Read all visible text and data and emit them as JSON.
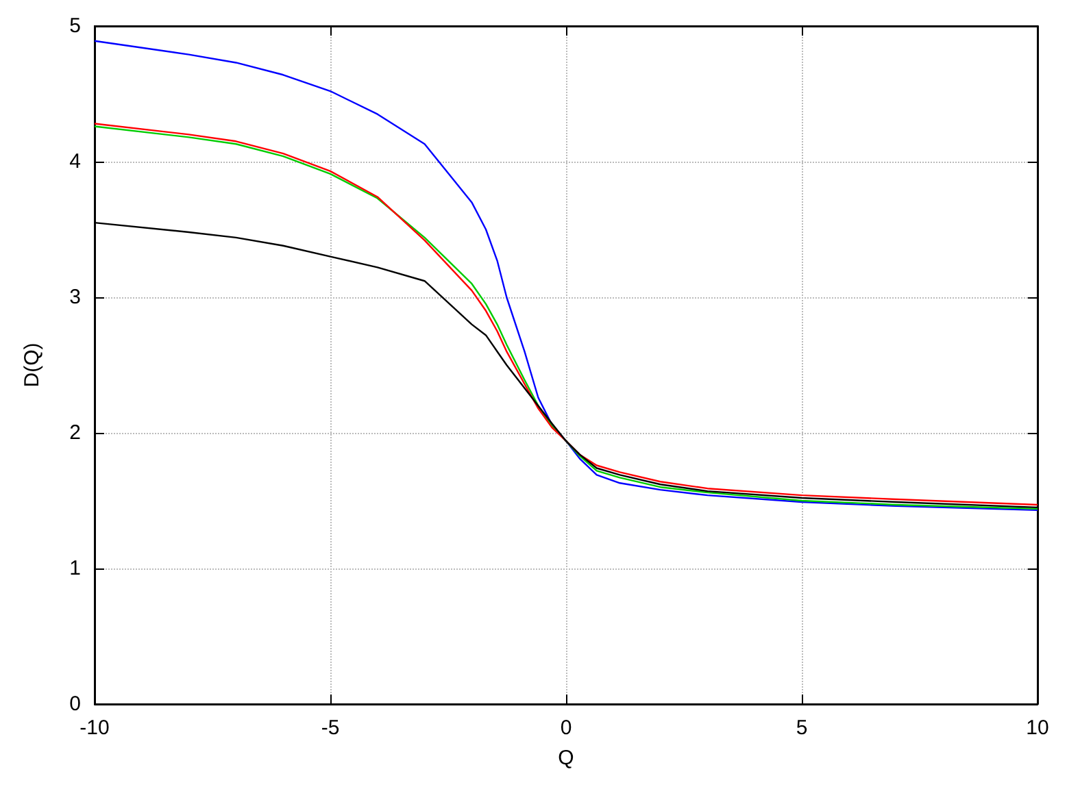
{
  "chart_data": {
    "type": "line",
    "xlabel": "Q",
    "ylabel": "D(Q)",
    "xlim": [
      -10,
      10
    ],
    "ylim": [
      0,
      5
    ],
    "xticks": [
      -10,
      -5,
      0,
      5,
      10
    ],
    "yticks": [
      0,
      1,
      2,
      3,
      4,
      5
    ],
    "grid": true,
    "marker": "none",
    "line_style": "solid",
    "x": [
      -10,
      -8,
      -7,
      -6,
      -5,
      -4,
      -3,
      -2,
      -1.7,
      -1.46,
      -1.26,
      -0.88,
      -0.59,
      -0.3,
      0,
      0.29,
      0.65,
      1.14,
      2,
      3,
      5,
      7,
      10
    ],
    "series": [
      {
        "color": "#0000ff",
        "values": [
          4.89,
          4.79,
          4.73,
          4.64,
          4.52,
          4.35,
          4.13,
          3.7,
          3.5,
          3.27,
          3.0,
          2.6,
          2.26,
          2.06,
          1.94,
          1.81,
          1.69,
          1.63,
          1.58,
          1.54,
          1.49,
          1.46,
          1.43
        ]
      },
      {
        "color": "#00cc00",
        "values": [
          4.26,
          4.18,
          4.13,
          4.04,
          3.91,
          3.73,
          3.44,
          3.1,
          2.95,
          2.8,
          2.65,
          2.39,
          2.2,
          2.05,
          1.94,
          1.83,
          1.72,
          1.67,
          1.6,
          1.56,
          1.5,
          1.47,
          1.44
        ]
      },
      {
        "color": "#ff0000",
        "values": [
          4.28,
          4.2,
          4.15,
          4.06,
          3.93,
          3.74,
          3.42,
          3.05,
          2.9,
          2.75,
          2.6,
          2.36,
          2.18,
          2.04,
          1.94,
          1.84,
          1.76,
          1.71,
          1.64,
          1.59,
          1.54,
          1.51,
          1.47
        ]
      },
      {
        "color": "#000000",
        "values": [
          3.55,
          3.48,
          3.44,
          3.38,
          3.3,
          3.22,
          3.12,
          2.8,
          2.72,
          2.6,
          2.5,
          2.33,
          2.2,
          2.07,
          1.94,
          1.84,
          1.74,
          1.69,
          1.62,
          1.57,
          1.52,
          1.49,
          1.45
        ]
      }
    ]
  }
}
